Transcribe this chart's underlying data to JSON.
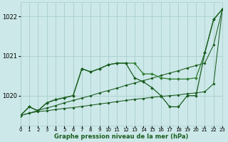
{
  "background_color": "#cce8e8",
  "grid_color": "#aacece",
  "dark_green": "#1a5c20",
  "mid_green": "#2e7d32",
  "xlabel": "Graphe pression niveau de la mer (hPa)",
  "ylim": [
    1019.25,
    1022.35
  ],
  "xlim": [
    0,
    23
  ],
  "yticks": [
    1020,
    1021,
    1022
  ],
  "xticks": [
    0,
    1,
    2,
    3,
    4,
    5,
    6,
    7,
    8,
    9,
    10,
    11,
    12,
    13,
    14,
    15,
    16,
    17,
    18,
    19,
    20,
    21,
    22,
    23
  ],
  "line_upper": [
    1019.5,
    1019.72,
    1019.62,
    1019.82,
    1019.9,
    1019.95,
    1020.0,
    1020.68,
    1020.6,
    1020.68,
    1020.78,
    1020.82,
    1020.82,
    1020.82,
    1020.55,
    1020.55,
    1020.45,
    1020.42,
    1020.42,
    1020.42,
    1020.45,
    1021.08,
    1021.92,
    1022.18
  ],
  "line_lower": [
    1019.5,
    1019.72,
    1019.62,
    1019.82,
    1019.9,
    1019.95,
    1020.0,
    1020.68,
    1020.6,
    1020.68,
    1020.78,
    1020.82,
    1020.82,
    1020.45,
    1020.35,
    1020.2,
    1020.0,
    1019.72,
    1019.72,
    1020.0,
    1020.0,
    1021.08,
    1021.92,
    1022.18
  ],
  "line_straight": [
    1019.5,
    1019.56,
    1019.63,
    1019.69,
    1019.75,
    1019.82,
    1019.88,
    1019.94,
    1020.0,
    1020.07,
    1020.13,
    1020.19,
    1020.26,
    1020.32,
    1020.38,
    1020.44,
    1020.51,
    1020.57,
    1020.63,
    1020.7,
    1020.76,
    1020.82,
    1021.28,
    1022.18
  ],
  "line_flat": [
    1019.5,
    1019.56,
    1019.6,
    1019.62,
    1019.65,
    1019.68,
    1019.7,
    1019.73,
    1019.76,
    1019.79,
    1019.82,
    1019.85,
    1019.88,
    1019.91,
    1019.93,
    1019.96,
    1019.98,
    1020.0,
    1020.02,
    1020.05,
    1020.07,
    1020.1,
    1020.3,
    1022.18
  ]
}
